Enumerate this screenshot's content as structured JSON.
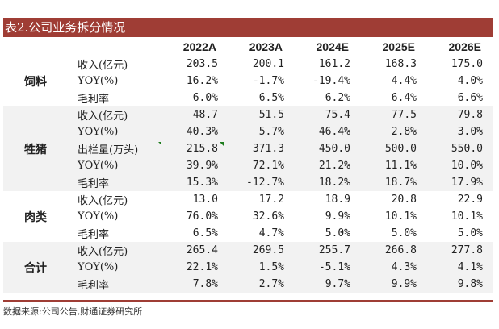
{
  "title": "表2.公司业务拆分情况",
  "columns": [
    "2022A",
    "2023A",
    "2024E",
    "2025E",
    "2026E"
  ],
  "segments": [
    {
      "name": "饲料",
      "rows": [
        {
          "metric": "收入(亿元)",
          "values": [
            "203.5",
            "200.1",
            "161.2",
            "168.3",
            "175.0"
          ]
        },
        {
          "metric": "YOY(%)",
          "values": [
            "16.2%",
            "-1.7%",
            "-19.4%",
            "4.4%",
            "4.0%"
          ]
        },
        {
          "metric": "毛利率",
          "values": [
            "6.0%",
            "6.5%",
            "6.2%",
            "6.4%",
            "6.6%"
          ]
        }
      ]
    },
    {
      "name": "牲猪",
      "rows": [
        {
          "metric": "收入(亿元)",
          "values": [
            "48.7",
            "51.5",
            "75.4",
            "77.5",
            "79.8"
          ]
        },
        {
          "metric": "YOY(%)",
          "values": [
            "40.3%",
            "5.7%",
            "46.4%",
            "2.8%",
            "3.0%"
          ]
        },
        {
          "metric": "出栏量(万头)",
          "values": [
            "215.8",
            "371.3",
            "450.0",
            "500.0",
            "550.0"
          ]
        },
        {
          "metric": "YOY(%)",
          "values": [
            "39.9%",
            "72.1%",
            "21.2%",
            "11.1%",
            "10.0%"
          ]
        },
        {
          "metric": "毛利率",
          "values": [
            "15.3%",
            "-12.7%",
            "18.2%",
            "18.7%",
            "17.9%"
          ]
        }
      ]
    },
    {
      "name": "肉类",
      "rows": [
        {
          "metric": "收入(亿元)",
          "values": [
            "13.0",
            "17.2",
            "18.9",
            "20.8",
            "22.9"
          ]
        },
        {
          "metric": "YOY(%)",
          "values": [
            "76.0%",
            "32.6%",
            "9.9%",
            "10.1%",
            "10.1%"
          ]
        },
        {
          "metric": "毛利率",
          "values": [
            "6.5%",
            "4.7%",
            "5.0%",
            "5.0%",
            "5.0%"
          ]
        }
      ]
    },
    {
      "name": "合计",
      "rows": [
        {
          "metric": "收入(亿元)",
          "values": [
            "265.4",
            "269.5",
            "255.7",
            "266.8",
            "277.8"
          ]
        },
        {
          "metric": "YOY(%)",
          "values": [
            "22.1%",
            "1.5%",
            "-5.1%",
            "4.3%",
            "4.1%"
          ]
        },
        {
          "metric": "毛利率",
          "values": [
            "7.8%",
            "2.7%",
            "9.7%",
            "9.9%",
            "9.8%"
          ]
        }
      ]
    }
  ],
  "source": "数据来源:公司公告,财通证券研究所",
  "colors": {
    "accent": "#9f3d35",
    "band": "#f2f2f2",
    "flag": "#1e7d1e"
  }
}
